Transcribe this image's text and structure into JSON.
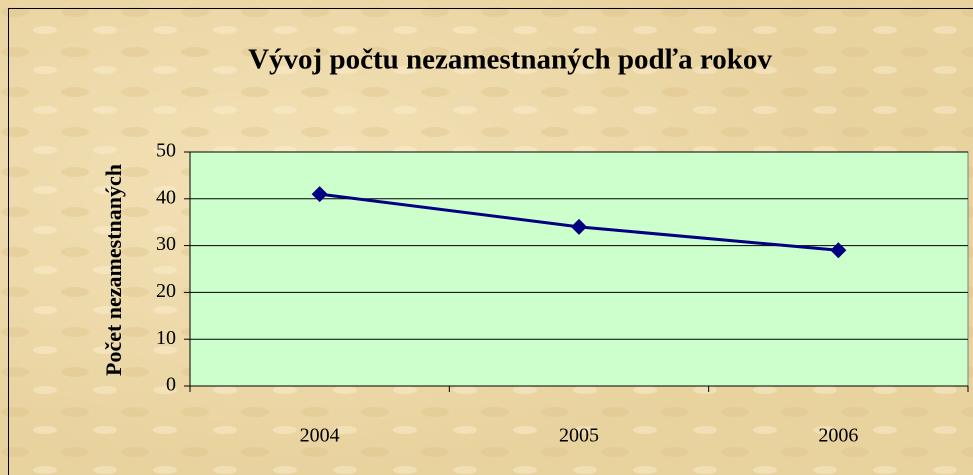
{
  "chart_data": {
    "type": "line",
    "title": "Vývoj počtu nezamestnaných podľa rokov",
    "y_label": "Počet nezamestnaných",
    "categories": [
      "2004",
      "2005",
      "2006"
    ],
    "values": [
      41,
      34,
      29
    ],
    "color": "#000080",
    "plot_background": "#ccffcc",
    "ylim": [
      0,
      50
    ],
    "yticks": [
      0,
      10,
      20,
      30,
      40,
      50
    ],
    "grid": true
  }
}
